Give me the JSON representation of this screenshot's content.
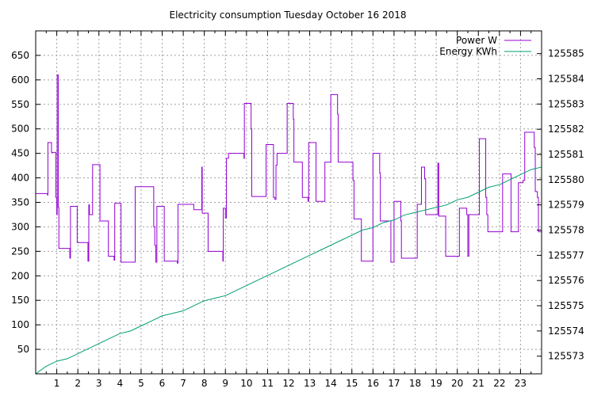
{
  "chart_data": {
    "type": "line",
    "title": "Electricity consumption Tuesday October 16 2018",
    "grid": true,
    "legend_placement": "top-right",
    "x_ticks": [
      1,
      2,
      3,
      4,
      5,
      6,
      7,
      8,
      9,
      10,
      11,
      12,
      13,
      14,
      15,
      16,
      17,
      18,
      19,
      20,
      21,
      22,
      23
    ],
    "xlim": [
      0,
      24
    ],
    "ylim": [
      0,
      700
    ],
    "y_ticks": [
      50,
      100,
      150,
      200,
      250,
      300,
      350,
      400,
      450,
      500,
      550,
      600,
      650
    ],
    "y2lim": [
      125572.3,
      125585.9
    ],
    "y2_ticks": [
      125573,
      125574,
      125575,
      125576,
      125577,
      125578,
      125579,
      125580,
      125581,
      125582,
      125583,
      125584,
      125585
    ],
    "series": [
      {
        "name": "Power W",
        "axis": "left",
        "color": "#9400d3",
        "step": true,
        "points": [
          [
            0.0,
            368
          ],
          [
            0.55,
            368
          ],
          [
            0.56,
            365
          ],
          [
            0.58,
            472
          ],
          [
            0.75,
            452
          ],
          [
            0.9,
            452
          ],
          [
            0.95,
            360
          ],
          [
            1.0,
            325
          ],
          [
            1.02,
            610
          ],
          [
            1.07,
            340
          ],
          [
            1.1,
            256
          ],
          [
            1.6,
            256
          ],
          [
            1.62,
            236
          ],
          [
            1.65,
            342
          ],
          [
            1.95,
            342
          ],
          [
            1.97,
            268
          ],
          [
            2.45,
            268
          ],
          [
            2.48,
            230
          ],
          [
            2.52,
            345
          ],
          [
            2.55,
            325
          ],
          [
            2.7,
            427
          ],
          [
            3.0,
            427
          ],
          [
            3.05,
            312
          ],
          [
            3.4,
            312
          ],
          [
            3.45,
            240
          ],
          [
            3.7,
            240
          ],
          [
            3.72,
            232
          ],
          [
            3.75,
            348
          ],
          [
            4.0,
            348
          ],
          [
            4.05,
            228
          ],
          [
            4.7,
            228
          ],
          [
            4.72,
            382
          ],
          [
            5.55,
            382
          ],
          [
            5.6,
            300
          ],
          [
            5.65,
            262
          ],
          [
            5.7,
            228
          ],
          [
            5.75,
            342
          ],
          [
            6.05,
            342
          ],
          [
            6.1,
            230
          ],
          [
            6.7,
            230
          ],
          [
            6.72,
            226
          ],
          [
            6.75,
            346
          ],
          [
            7.45,
            346
          ],
          [
            7.5,
            335
          ],
          [
            7.85,
            335
          ],
          [
            7.88,
            422
          ],
          [
            7.9,
            328
          ],
          [
            8.15,
            328
          ],
          [
            8.18,
            250
          ],
          [
            8.85,
            250
          ],
          [
            8.88,
            230
          ],
          [
            8.9,
            338
          ],
          [
            9.0,
            318
          ],
          [
            9.05,
            440
          ],
          [
            9.15,
            450
          ],
          [
            9.85,
            450
          ],
          [
            9.88,
            440
          ],
          [
            9.9,
            552
          ],
          [
            10.2,
            552
          ],
          [
            10.22,
            500
          ],
          [
            10.25,
            362
          ],
          [
            10.9,
            362
          ],
          [
            10.93,
            468
          ],
          [
            11.25,
            468
          ],
          [
            11.28,
            360
          ],
          [
            11.35,
            356
          ],
          [
            11.4,
            426
          ],
          [
            11.45,
            450
          ],
          [
            11.9,
            450
          ],
          [
            11.93,
            552
          ],
          [
            12.2,
            552
          ],
          [
            12.22,
            520
          ],
          [
            12.25,
            432
          ],
          [
            12.6,
            432
          ],
          [
            12.65,
            360
          ],
          [
            12.9,
            360
          ],
          [
            12.92,
            352
          ],
          [
            12.95,
            472
          ],
          [
            13.25,
            472
          ],
          [
            13.3,
            352
          ],
          [
            13.7,
            352
          ],
          [
            13.72,
            432
          ],
          [
            13.95,
            432
          ],
          [
            14.0,
            570
          ],
          [
            14.3,
            570
          ],
          [
            14.32,
            530
          ],
          [
            14.35,
            432
          ],
          [
            15.0,
            432
          ],
          [
            15.05,
            395
          ],
          [
            15.1,
            316
          ],
          [
            15.4,
            316
          ],
          [
            15.45,
            230
          ],
          [
            15.95,
            230
          ],
          [
            16.0,
            450
          ],
          [
            16.3,
            450
          ],
          [
            16.32,
            410
          ],
          [
            16.35,
            312
          ],
          [
            16.8,
            312
          ],
          [
            16.85,
            228
          ],
          [
            16.95,
            228
          ],
          [
            17.0,
            352
          ],
          [
            17.3,
            352
          ],
          [
            17.32,
            312
          ],
          [
            17.35,
            236
          ],
          [
            18.05,
            236
          ],
          [
            18.1,
            346
          ],
          [
            18.25,
            346
          ],
          [
            18.3,
            422
          ],
          [
            18.4,
            422
          ],
          [
            18.45,
            398
          ],
          [
            18.5,
            325
          ],
          [
            19.05,
            325
          ],
          [
            19.08,
            430
          ],
          [
            19.12,
            322
          ],
          [
            19.4,
            322
          ],
          [
            19.45,
            240
          ],
          [
            20.05,
            240
          ],
          [
            20.1,
            338
          ],
          [
            20.4,
            338
          ],
          [
            20.45,
            325
          ],
          [
            20.5,
            240
          ],
          [
            20.55,
            325
          ],
          [
            21.0,
            325
          ],
          [
            21.05,
            480
          ],
          [
            21.3,
            480
          ],
          [
            21.35,
            360
          ],
          [
            21.4,
            325
          ],
          [
            21.45,
            290
          ],
          [
            22.1,
            290
          ],
          [
            22.15,
            408
          ],
          [
            22.5,
            408
          ],
          [
            22.55,
            290
          ],
          [
            22.85,
            290
          ],
          [
            22.9,
            390
          ],
          [
            23.1,
            390
          ],
          [
            23.12,
            395
          ],
          [
            23.2,
            493
          ],
          [
            23.6,
            493
          ],
          [
            23.65,
            462
          ],
          [
            23.7,
            372
          ],
          [
            23.8,
            360
          ],
          [
            23.85,
            290
          ],
          [
            24.0,
            290
          ]
        ]
      },
      {
        "name": "Energy KWh",
        "axis": "right",
        "color": "#009e73",
        "step": false,
        "points": [
          [
            0,
            125572.3
          ],
          [
            0.5,
            125572.6
          ],
          [
            1,
            125572.8
          ],
          [
            1.5,
            125572.9
          ],
          [
            2,
            125573.1
          ],
          [
            2.5,
            125573.3
          ],
          [
            3,
            125573.5
          ],
          [
            3.5,
            125573.7
          ],
          [
            4,
            125573.9
          ],
          [
            4.5,
            125574.0
          ],
          [
            5,
            125574.2
          ],
          [
            5.5,
            125574.4
          ],
          [
            6,
            125574.6
          ],
          [
            6.5,
            125574.7
          ],
          [
            7,
            125574.8
          ],
          [
            7.5,
            125575.0
          ],
          [
            8,
            125575.2
          ],
          [
            8.5,
            125575.3
          ],
          [
            9,
            125575.4
          ],
          [
            9.5,
            125575.6
          ],
          [
            10,
            125575.8
          ],
          [
            10.5,
            125576.0
          ],
          [
            11,
            125576.2
          ],
          [
            11.5,
            125576.4
          ],
          [
            12,
            125576.6
          ],
          [
            12.5,
            125576.8
          ],
          [
            13,
            125577.0
          ],
          [
            13.5,
            125577.2
          ],
          [
            14,
            125577.4
          ],
          [
            14.5,
            125577.6
          ],
          [
            15,
            125577.8
          ],
          [
            15.5,
            125578.0
          ],
          [
            16,
            125578.1
          ],
          [
            16.5,
            125578.3
          ],
          [
            17,
            125578.4
          ],
          [
            17.5,
            125578.6
          ],
          [
            18,
            125578.7
          ],
          [
            18.5,
            125578.8
          ],
          [
            19,
            125578.9
          ],
          [
            19.5,
            125579.0
          ],
          [
            20,
            125579.2
          ],
          [
            20.5,
            125579.3
          ],
          [
            21,
            125579.5
          ],
          [
            21.5,
            125579.7
          ],
          [
            22,
            125579.8
          ],
          [
            22.5,
            125580.0
          ],
          [
            23,
            125580.2
          ],
          [
            23.5,
            125580.4
          ],
          [
            24,
            125580.5
          ]
        ]
      }
    ]
  }
}
